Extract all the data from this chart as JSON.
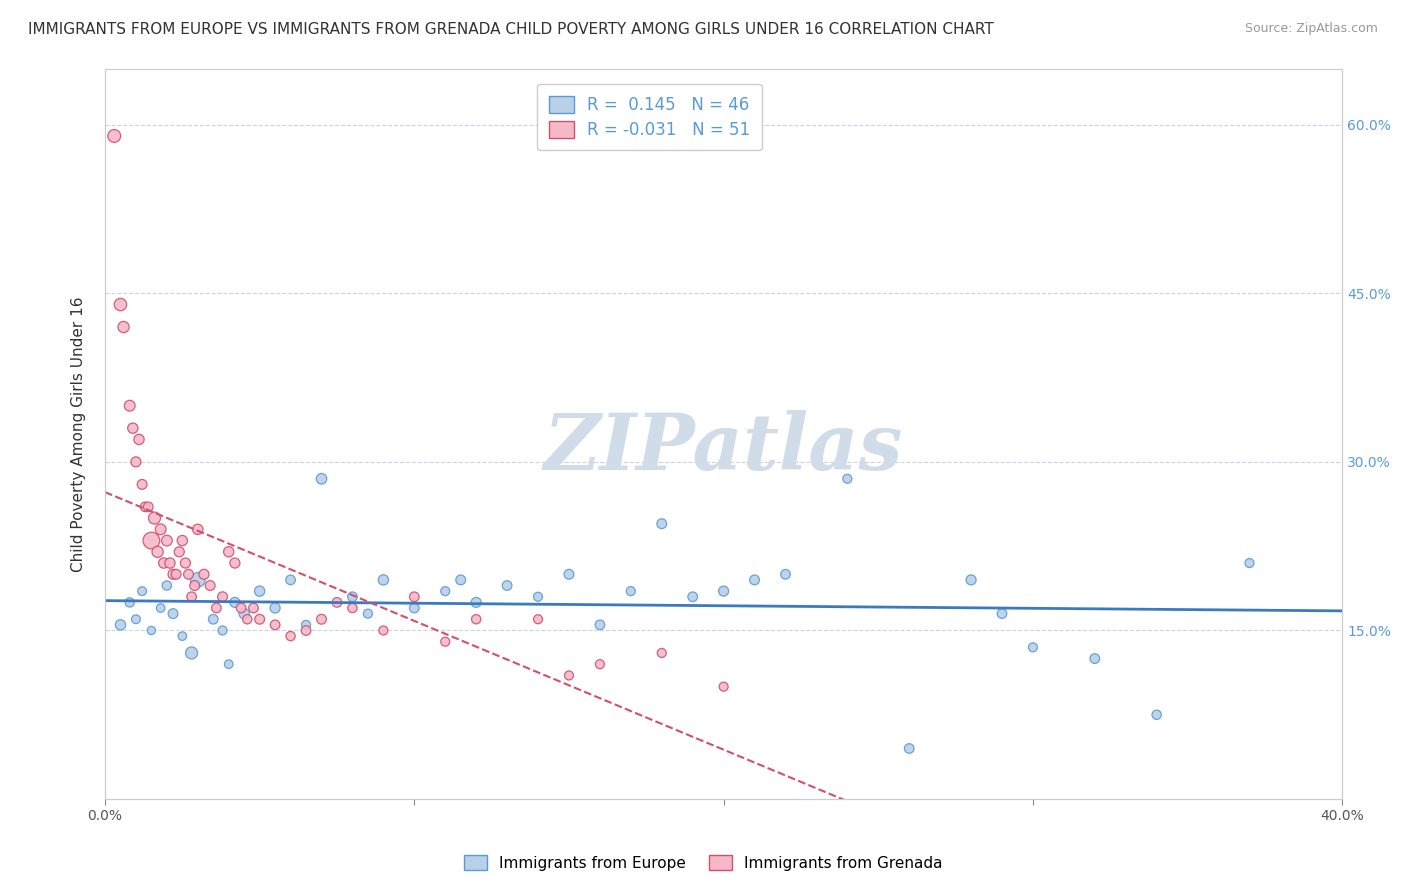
{
  "title": "IMMIGRANTS FROM EUROPE VS IMMIGRANTS FROM GRENADA CHILD POVERTY AMONG GIRLS UNDER 16 CORRELATION CHART",
  "source": "Source: ZipAtlas.com",
  "ylabel": "Child Poverty Among Girls Under 16",
  "xlim": [
    0.0,
    0.4
  ],
  "ylim": [
    0.0,
    0.65
  ],
  "ytick_values": [
    0.15,
    0.3,
    0.45,
    0.6
  ],
  "xtick_values": [
    0.0,
    0.1,
    0.2,
    0.3,
    0.4
  ],
  "xtick_labels": [
    "0.0%",
    "",
    "",
    "",
    "40.0%"
  ],
  "series": [
    {
      "label": "Immigrants from Europe",
      "color": "#b8d0e8",
      "edge_color": "#5b9bd5",
      "R": 0.145,
      "N": 46,
      "trend_color": "#3a7abf",
      "trend_style": "solid",
      "x": [
        0.005,
        0.008,
        0.01,
        0.012,
        0.015,
        0.018,
        0.02,
        0.022,
        0.025,
        0.028,
        0.03,
        0.035,
        0.038,
        0.04,
        0.042,
        0.045,
        0.05,
        0.055,
        0.06,
        0.065,
        0.07,
        0.08,
        0.085,
        0.09,
        0.1,
        0.11,
        0.115,
        0.12,
        0.13,
        0.14,
        0.15,
        0.16,
        0.17,
        0.18,
        0.19,
        0.2,
        0.21,
        0.22,
        0.24,
        0.26,
        0.28,
        0.29,
        0.3,
        0.32,
        0.34,
        0.37
      ],
      "y": [
        0.155,
        0.175,
        0.16,
        0.185,
        0.15,
        0.17,
        0.19,
        0.165,
        0.145,
        0.13,
        0.195,
        0.16,
        0.15,
        0.12,
        0.175,
        0.165,
        0.185,
        0.17,
        0.195,
        0.155,
        0.285,
        0.18,
        0.165,
        0.195,
        0.17,
        0.185,
        0.195,
        0.175,
        0.19,
        0.18,
        0.2,
        0.155,
        0.185,
        0.245,
        0.18,
        0.185,
        0.195,
        0.2,
        0.285,
        0.045,
        0.195,
        0.165,
        0.135,
        0.125,
        0.075,
        0.21
      ],
      "sizes": [
        55,
        45,
        40,
        40,
        35,
        38,
        45,
        50,
        38,
        75,
        110,
        48,
        42,
        38,
        52,
        55,
        55,
        52,
        48,
        42,
        58,
        48,
        42,
        55,
        48,
        42,
        50,
        52,
        48,
        42,
        50,
        48,
        42,
        50,
        48,
        52,
        50,
        48,
        42,
        48,
        52,
        48,
        42,
        48,
        45,
        42
      ]
    },
    {
      "label": "Immigrants from Grenada",
      "color": "#f4b8c8",
      "edge_color": "#d05070",
      "R": -0.031,
      "N": 51,
      "trend_color": "#d05070",
      "trend_style": "dashed",
      "x": [
        0.003,
        0.005,
        0.006,
        0.008,
        0.009,
        0.01,
        0.011,
        0.012,
        0.013,
        0.014,
        0.015,
        0.016,
        0.017,
        0.018,
        0.019,
        0.02,
        0.021,
        0.022,
        0.023,
        0.024,
        0.025,
        0.026,
        0.027,
        0.028,
        0.029,
        0.03,
        0.032,
        0.034,
        0.036,
        0.038,
        0.04,
        0.042,
        0.044,
        0.046,
        0.048,
        0.05,
        0.055,
        0.06,
        0.065,
        0.07,
        0.075,
        0.08,
        0.09,
        0.1,
        0.11,
        0.12,
        0.14,
        0.15,
        0.16,
        0.18,
        0.2
      ],
      "y": [
        0.59,
        0.44,
        0.42,
        0.35,
        0.33,
        0.3,
        0.32,
        0.28,
        0.26,
        0.26,
        0.23,
        0.25,
        0.22,
        0.24,
        0.21,
        0.23,
        0.21,
        0.2,
        0.2,
        0.22,
        0.23,
        0.21,
        0.2,
        0.18,
        0.19,
        0.24,
        0.2,
        0.19,
        0.17,
        0.18,
        0.22,
        0.21,
        0.17,
        0.16,
        0.17,
        0.16,
        0.155,
        0.145,
        0.15,
        0.16,
        0.175,
        0.17,
        0.15,
        0.18,
        0.14,
        0.16,
        0.16,
        0.11,
        0.12,
        0.13,
        0.1
      ],
      "sizes": [
        85,
        80,
        65,
        60,
        55,
        52,
        55,
        50,
        48,
        48,
        145,
        75,
        65,
        60,
        55,
        60,
        55,
        52,
        50,
        52,
        55,
        52,
        50,
        48,
        50,
        55,
        52,
        50,
        48,
        50,
        55,
        52,
        48,
        45,
        48,
        50,
        48,
        45,
        48,
        50,
        48,
        45,
        42,
        48,
        42,
        45,
        42,
        42,
        42,
        42,
        42
      ]
    }
  ],
  "watermark": "ZIPatlas",
  "watermark_color": "#d0dce8",
  "background_color": "#ffffff",
  "grid_color": "#c8d0dc",
  "title_fontsize": 11,
  "axis_label_fontsize": 11
}
